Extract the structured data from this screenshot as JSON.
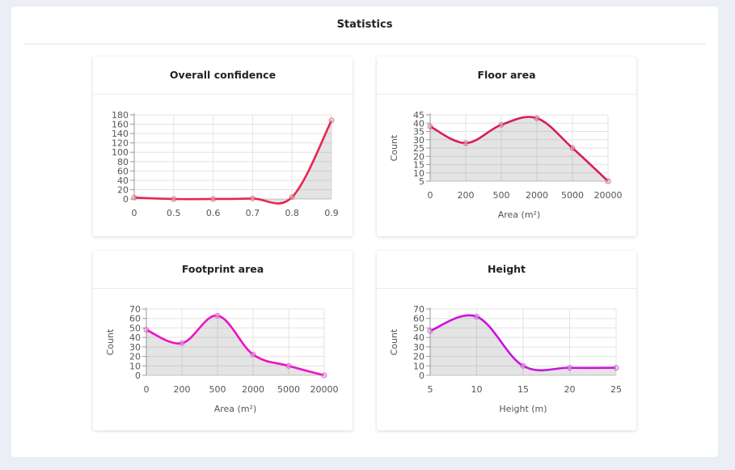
{
  "page": {
    "title": "Statistics"
  },
  "cards": [
    {
      "title": "Overall confidence"
    },
    {
      "title": "Floor area"
    },
    {
      "title": "Footprint area"
    },
    {
      "title": "Height"
    }
  ],
  "chart_data": [
    {
      "type": "area",
      "title": "Overall confidence",
      "xlabel": "",
      "ylabel": "",
      "categories": [
        "0",
        "0.5",
        "0.6",
        "0.7",
        "0.8",
        "0.9"
      ],
      "ylim": [
        0,
        180
      ],
      "yticks": [
        0,
        20,
        40,
        60,
        80,
        100,
        120,
        140,
        160,
        180
      ],
      "grid": true,
      "color": "#e8254f",
      "series": [
        {
          "values": [
            3,
            0,
            0,
            1,
            4,
            168
          ]
        }
      ]
    },
    {
      "type": "area",
      "title": "Floor area",
      "xlabel": "Area (m²)",
      "ylabel": "Count",
      "categories": [
        "0",
        "200",
        "500",
        "2000",
        "5000",
        "20000"
      ],
      "ylim": [
        5,
        45
      ],
      "yticks": [
        5,
        10,
        15,
        20,
        25,
        30,
        35,
        40,
        45
      ],
      "grid": true,
      "color": "#d81b60",
      "series": [
        {
          "values": [
            38,
            28,
            39,
            43,
            25,
            5
          ]
        }
      ]
    },
    {
      "type": "area",
      "title": "Footprint area",
      "xlabel": "Area (m²)",
      "ylabel": "Count",
      "categories": [
        "0",
        "200",
        "500",
        "2000",
        "5000",
        "20000"
      ],
      "ylim": [
        0,
        70
      ],
      "yticks": [
        0,
        10,
        20,
        30,
        40,
        50,
        60,
        70
      ],
      "grid": true,
      "color": "#ee10c8",
      "series": [
        {
          "values": [
            48,
            34,
            63,
            22,
            10,
            0
          ]
        }
      ]
    },
    {
      "type": "area",
      "title": "Height",
      "xlabel": "Height (m)",
      "ylabel": "Count",
      "categories": [
        "5",
        "10",
        "15",
        "20",
        "25"
      ],
      "ylim": [
        0,
        70
      ],
      "yticks": [
        0,
        10,
        20,
        30,
        40,
        50,
        60,
        70
      ],
      "grid": true,
      "color": "#cc10e0",
      "series": [
        {
          "values": [
            47,
            62,
            10,
            8,
            8
          ]
        }
      ]
    }
  ]
}
